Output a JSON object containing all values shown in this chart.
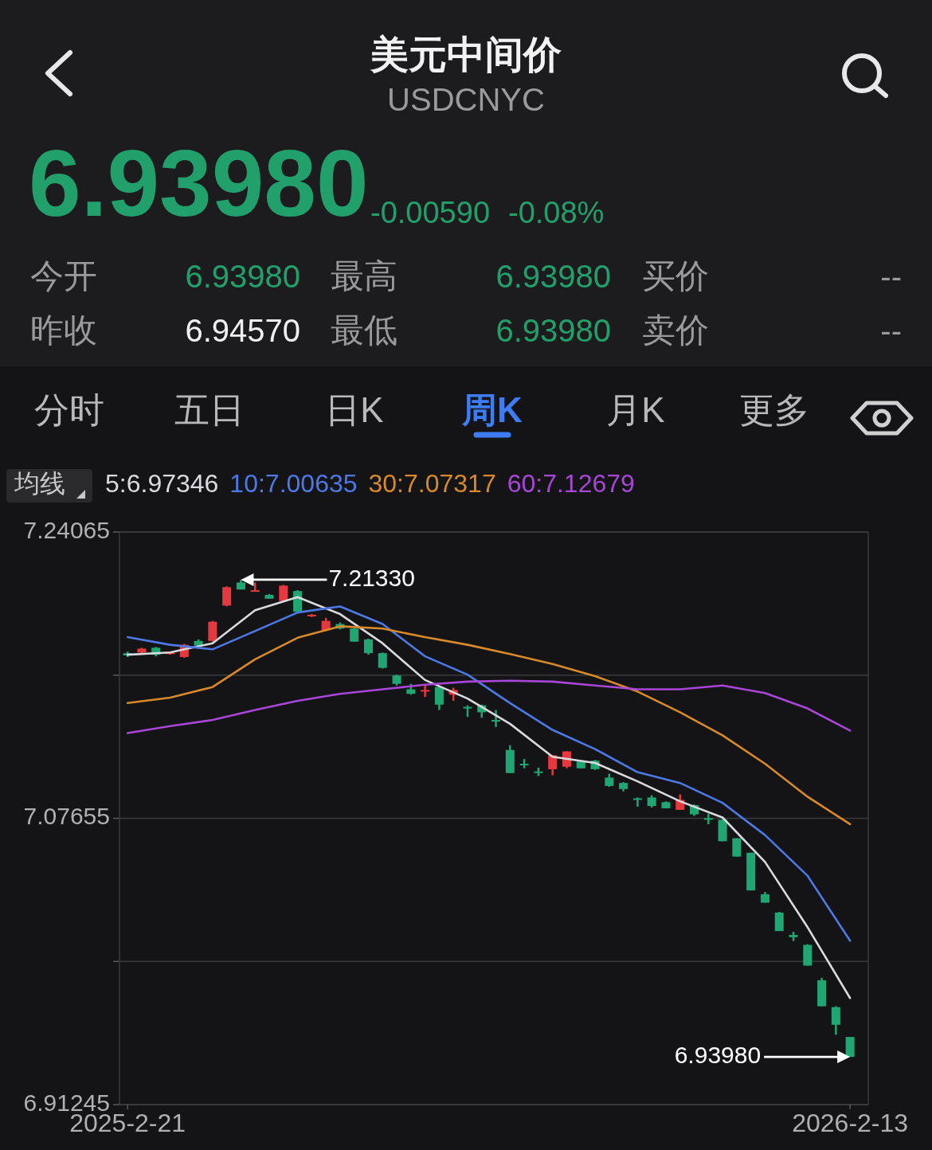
{
  "chart_data": {
    "type": "candlestick",
    "title": "美元中间价",
    "subtitle": "USDCNYC",
    "x": [
      "2025-02-21",
      "2025-02-28",
      "2025-03-07",
      "2025-03-14",
      "2025-03-21",
      "2025-03-28",
      "2025-04-04",
      "2025-04-11",
      "2025-04-18",
      "2025-04-25",
      "2025-05-02",
      "2025-05-09",
      "2025-05-16",
      "2025-05-23",
      "2025-05-30",
      "2025-06-06",
      "2025-06-13",
      "2025-06-20",
      "2025-06-27",
      "2025-07-04",
      "2025-07-11",
      "2025-07-18",
      "2025-07-25",
      "2025-08-01",
      "2025-08-08",
      "2025-08-15",
      "2025-08-22",
      "2025-08-29",
      "2025-09-05",
      "2025-09-12",
      "2025-09-19",
      "2025-09-26",
      "2025-10-03",
      "2025-10-10",
      "2025-10-17",
      "2025-10-24",
      "2025-10-31",
      "2025-11-07",
      "2025-11-14",
      "2025-11-21",
      "2025-11-28",
      "2025-12-05",
      "2025-12-12",
      "2025-12-19",
      "2025-12-26",
      "2026-01-02",
      "2026-01-09",
      "2026-01-16",
      "2026-01-23",
      "2026-01-30",
      "2026-02-06",
      "2026-02-13"
    ],
    "ohlc": [
      [
        7.1712,
        7.1721,
        7.169,
        7.1699
      ],
      [
        7.1716,
        7.1743,
        7.1712,
        7.1738
      ],
      [
        7.1743,
        7.1747,
        7.1694,
        7.1703
      ],
      [
        7.1707,
        7.1721,
        7.1703,
        7.1716
      ],
      [
        7.169,
        7.1765,
        7.1685,
        7.176
      ],
      [
        7.1782,
        7.1791,
        7.1751,
        7.1756
      ],
      [
        7.1782,
        7.1897,
        7.1778,
        7.1892
      ],
      [
        7.1985,
        7.2095,
        7.198,
        7.209
      ],
      [
        7.2117,
        7.2133,
        7.2077,
        7.2077
      ],
      [
        7.2064,
        7.2117,
        7.2064,
        7.2073
      ],
      [
        7.2046,
        7.2051,
        7.2024,
        7.2024
      ],
      [
        7.2011,
        7.2103,
        7.2007,
        7.2099
      ],
      [
        7.2068,
        7.2073,
        7.1949,
        7.1949
      ],
      [
        7.1923,
        7.1936,
        7.1919,
        7.1932
      ],
      [
        7.1844,
        7.1914,
        7.1839,
        7.1897
      ],
      [
        7.1879,
        7.1888,
        7.1848,
        7.1853
      ],
      [
        7.1853,
        7.1857,
        7.1778,
        7.1778
      ],
      [
        7.1791,
        7.1795,
        7.1703,
        7.1712
      ],
      [
        7.1712,
        7.1716,
        7.1624,
        7.1628
      ],
      [
        7.1584,
        7.1589,
        7.1527,
        7.1536
      ],
      [
        7.1505,
        7.1536,
        7.1474,
        7.1479
      ],
      [
        7.1492,
        7.1527,
        7.1461,
        7.1501
      ],
      [
        7.1518,
        7.1523,
        7.1386,
        7.1417
      ],
      [
        7.1474,
        7.1514,
        7.1439,
        7.1501
      ],
      [
        7.1404,
        7.1413,
        7.1347,
        7.1399
      ],
      [
        7.1413,
        7.1417,
        7.1342,
        7.1373
      ],
      [
        7.1329,
        7.1386,
        7.1289,
        7.132
      ],
      [
        7.1157,
        7.1184,
        7.1025,
        7.1025
      ],
      [
        7.1078,
        7.1105,
        7.1052,
        7.1069
      ],
      [
        7.1034,
        7.1056,
        7.1008,
        7.1025
      ],
      [
        7.1047,
        7.1127,
        7.1012,
        7.1127
      ],
      [
        7.1061,
        7.1149,
        7.1052,
        7.1149
      ],
      [
        7.1091,
        7.1096,
        7.1052,
        7.1052
      ],
      [
        7.1096,
        7.11,
        7.1043,
        7.1047
      ],
      [
        7.0999,
        7.1021,
        7.0946,
        7.0951
      ],
      [
        7.0968,
        7.0973,
        7.092,
        7.0933
      ],
      [
        7.088,
        7.0885,
        7.0832,
        7.0871
      ],
      [
        7.0885,
        7.0898,
        7.0827,
        7.0836
      ],
      [
        7.0858,
        7.0863,
        7.0823,
        7.0823
      ],
      [
        7.0814,
        7.0902,
        7.0814,
        7.0871
      ],
      [
        7.0841,
        7.0845,
        7.0779,
        7.0788
      ],
      [
        7.0766,
        7.0792,
        7.0731,
        7.0757
      ],
      [
        7.0757,
        7.0761,
        7.0634,
        7.0634
      ],
      [
        7.0651,
        7.0651,
        7.0546,
        7.0546
      ],
      [
        7.0568,
        7.0568,
        7.0352,
        7.0352
      ],
      [
        7.033,
        7.0343,
        7.0282,
        7.0282
      ],
      [
        7.0225,
        7.0229,
        7.0119,
        7.0119
      ],
      [
        7.0097,
        7.0115,
        7.0062,
        7.0084
      ],
      [
        7.004,
        7.0044,
        6.9921,
        6.9921
      ],
      [
        6.9837,
        6.9851,
        6.9688,
        6.9688
      ],
      [
        6.9683,
        6.9688,
        6.9525,
        6.9582
      ],
      [
        6.9512,
        6.9512,
        6.9398,
        6.9398
      ]
    ],
    "legend_title": "均线",
    "series": [
      {
        "name": "5:6.97346",
        "type": "line",
        "color": "#d9d9df",
        "x": [
          "2025-02-21",
          "2025-03-14",
          "2025-04-04",
          "2025-04-25",
          "2025-05-16",
          "2025-06-06",
          "2025-06-27",
          "2025-07-18",
          "2025-08-08",
          "2025-08-29",
          "2025-09-19",
          "2025-10-10",
          "2025-10-31",
          "2025-11-21",
          "2025-12-12",
          "2026-01-02",
          "2026-01-23",
          "2026-02-13"
        ],
        "values": [
          7.1703,
          7.1716,
          7.1769,
          7.1958,
          7.2033,
          7.1936,
          7.1769,
          7.1558,
          7.1452,
          7.1307,
          7.1118,
          7.1083,
          7.0977,
          7.0863,
          7.077,
          7.0515,
          7.0141,
          6.9735
        ]
      },
      {
        "name": "10:7.00635",
        "type": "line",
        "color": "#4d79e6",
        "x": [
          "2025-02-21",
          "2025-03-14",
          "2025-04-04",
          "2025-04-25",
          "2025-05-16",
          "2025-06-06",
          "2025-06-27",
          "2025-07-18",
          "2025-08-08",
          "2025-08-29",
          "2025-09-19",
          "2025-10-10",
          "2025-10-31",
          "2025-11-21",
          "2025-12-12",
          "2026-01-02",
          "2026-01-23",
          "2026-02-13"
        ],
        "values": [
          7.1804,
          7.176,
          7.1734,
          7.1839,
          7.1945,
          7.198,
          7.1879,
          7.1694,
          7.1589,
          7.1426,
          7.1272,
          7.1162,
          7.103,
          7.0968,
          7.0854,
          7.0669,
          7.0436,
          7.0064
        ]
      },
      {
        "name": "30:7.07317",
        "type": "line",
        "color": "#d88a2a",
        "x": [
          "2025-02-21",
          "2025-03-14",
          "2025-04-04",
          "2025-04-25",
          "2025-05-16",
          "2025-06-06",
          "2025-06-27",
          "2025-07-18",
          "2025-08-08",
          "2025-08-29",
          "2025-09-19",
          "2025-10-10",
          "2025-10-31",
          "2025-11-21",
          "2025-12-12",
          "2026-01-02",
          "2026-01-23",
          "2026-02-13"
        ],
        "values": [
          7.1426,
          7.1457,
          7.1518,
          7.1677,
          7.18,
          7.1866,
          7.1853,
          7.1804,
          7.176,
          7.1707,
          7.165,
          7.158,
          7.1492,
          7.1373,
          7.1241,
          7.1078,
          7.0889,
          7.0732
        ]
      },
      {
        "name": "60:7.12679",
        "type": "line",
        "color": "#a846d8",
        "x": [
          "2025-02-21",
          "2025-03-14",
          "2025-04-04",
          "2025-04-25",
          "2025-05-16",
          "2025-06-06",
          "2025-06-27",
          "2025-07-18",
          "2025-08-08",
          "2025-08-29",
          "2025-09-19",
          "2025-10-10",
          "2025-10-31",
          "2025-11-21",
          "2025-12-12",
          "2026-01-02",
          "2026-01-23",
          "2026-02-13"
        ],
        "values": [
          7.1254,
          7.1294,
          7.1329,
          7.1386,
          7.1439,
          7.1479,
          7.1505,
          7.1531,
          7.1549,
          7.1554,
          7.1549,
          7.1527,
          7.1505,
          7.1505,
          7.1527,
          7.1483,
          7.1395,
          7.1268
        ]
      }
    ],
    "legend": "top",
    "xlim": [
      "2025-02-17",
      "2026-02-22"
    ],
    "xticks": [
      {
        "value": "2025-02-21",
        "label": "2025-2-21"
      },
      {
        "value": "2026-02-13",
        "label": "2026-2-13"
      }
    ],
    "ylim": [
      6.91245,
      7.24065
    ],
    "yticks": [
      7.24065,
      {
        "value": 7.1586,
        "label": null
      },
      7.07655,
      {
        "value": 6.9945,
        "label": null
      },
      6.91245
    ],
    "grid": "y",
    "annotations": [
      "7.21330",
      "6.93980",
      "6.93980",
      "-0.00590",
      "-0.08%",
      "今开",
      "6.93980",
      "最高",
      "6.93980",
      "买价",
      "--",
      "昨收",
      "6.94570",
      "最低",
      "6.93980",
      "卖价",
      "--",
      "分时",
      "五日",
      "日K",
      "周K",
      "月K",
      "更多"
    ]
  }
}
